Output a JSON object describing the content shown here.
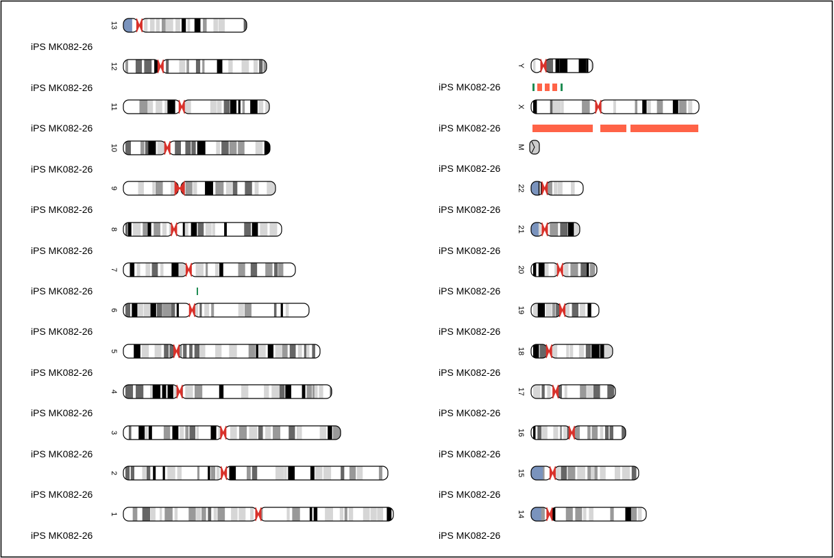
{
  "sample_label": "iPS MK082-26",
  "colors": {
    "centromere": "#d9312a",
    "acen_p_arm_blue": "#7a93bd",
    "band_black": "#000000",
    "band_dark": "#666666",
    "band_mid": "#999999",
    "band_light": "#d6d6d6",
    "gain_marker": "#ff6347",
    "loss_marker": "#1e8c52"
  },
  "left_column": [
    {
      "chrom": "13",
      "sample": "iPS MK082-26"
    },
    {
      "chrom": "12",
      "sample": "iPS MK082-26"
    },
    {
      "chrom": "11",
      "sample": "iPS MK082-26"
    },
    {
      "chrom": "10",
      "sample": "iPS MK082-26"
    },
    {
      "chrom": "9",
      "sample": "iPS MK082-26"
    },
    {
      "chrom": "8",
      "sample": "iPS MK082-26"
    },
    {
      "chrom": "7",
      "sample": "iPS MK082-26"
    },
    {
      "chrom": "6",
      "sample": "iPS MK082-26"
    },
    {
      "chrom": "5",
      "sample": "iPS MK082-26"
    },
    {
      "chrom": "4",
      "sample": "iPS MK082-26"
    },
    {
      "chrom": "3",
      "sample": "iPS MK082-26"
    },
    {
      "chrom": "2",
      "sample": "iPS MK082-26"
    },
    {
      "chrom": "1",
      "sample": "iPS MK082-26"
    }
  ],
  "right_column": [
    {
      "chrom": "Y",
      "sample": "iPS MK082-26"
    },
    {
      "chrom": "X",
      "sample": "iPS MK082-26"
    },
    {
      "chrom": "M",
      "sample": "iPS MK082-26"
    },
    {
      "chrom": "22",
      "sample": "iPS MK082-26"
    },
    {
      "chrom": "21",
      "sample": "iPS MK082-26"
    },
    {
      "chrom": "20",
      "sample": "iPS MK082-26"
    },
    {
      "chrom": "19",
      "sample": "iPS MK082-26"
    },
    {
      "chrom": "18",
      "sample": "iPS MK082-26"
    },
    {
      "chrom": "17",
      "sample": "iPS MK082-26"
    },
    {
      "chrom": "16",
      "sample": "iPS MK082-26"
    },
    {
      "chrom": "15",
      "sample": "iPS MK082-26"
    },
    {
      "chrom": "14",
      "sample": "iPS MK082-26"
    }
  ],
  "events": [
    {
      "chrom": "7",
      "type": "loss"
    },
    {
      "chrom": "Y",
      "type": "gain"
    },
    {
      "chrom": "Y",
      "type": "loss"
    },
    {
      "chrom": "X",
      "type": "gain"
    }
  ]
}
